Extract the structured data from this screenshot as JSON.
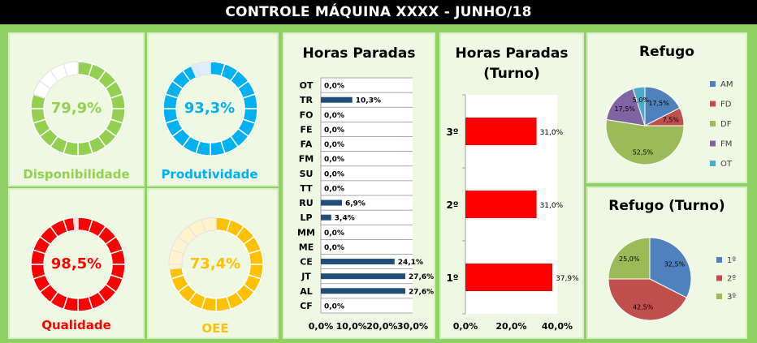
{
  "header": {
    "title": "CONTROLE MÁQUINA XXXX - JUNHO/18"
  },
  "kpis": [
    {
      "id": "disponibilidade",
      "label": "Disponibilidade",
      "value": 79.9,
      "value_text": "79,9%",
      "color": "#92d050",
      "light": "#ffffff",
      "label_color": "#92d050"
    },
    {
      "id": "produtividade",
      "label": "Produtividade",
      "value": 93.3,
      "value_text": "93,3%",
      "color": "#00b0f0",
      "light": "#dbeffa",
      "label_color": "#00b0f0"
    },
    {
      "id": "qualidade",
      "label": "Qualidade",
      "value": 98.5,
      "value_text": "98,5%",
      "color": "#ff0000",
      "light": "#fde0e0",
      "label_color": "#ff0000"
    },
    {
      "id": "oee",
      "label": "OEE",
      "value": 73.4,
      "value_text": "73,4%",
      "color": "#ffc000",
      "light": "#fff2cc",
      "label_color": "#ffc000"
    }
  ],
  "chart_data": [
    {
      "type": "bar",
      "orientation": "horizontal",
      "title": "Horas Paradas",
      "categories": [
        "OT",
        "TR",
        "FO",
        "FE",
        "FA",
        "FM",
        "SU",
        "TT",
        "RU",
        "LP",
        "MM",
        "ME",
        "CE",
        "JT",
        "AL",
        "CF"
      ],
      "values": [
        0.0,
        10.3,
        0.0,
        0.0,
        0.0,
        0.0,
        0.0,
        0.0,
        6.9,
        3.4,
        0.0,
        0.0,
        24.1,
        27.6,
        27.6,
        0.0
      ],
      "data_labels": [
        "0,0%",
        "10,3%",
        "0,0%",
        "0,0%",
        "0,0%",
        "0,0%",
        "0,0%",
        "0,0%",
        "6,9%",
        "3,4%",
        "0,0%",
        "0,0%",
        "24,1%",
        "27,6%",
        "27,6%",
        "0,0%"
      ],
      "xlim": [
        0,
        30
      ],
      "xticks": [
        "0,0%",
        "10,0%",
        "20,0%",
        "30,0%"
      ],
      "color": "#1f4e79",
      "grid": "horizontal"
    },
    {
      "type": "bar",
      "orientation": "horizontal",
      "title": "Horas Paradas (Turno)",
      "categories": [
        "3º",
        "2º",
        "1º"
      ],
      "values": [
        31.0,
        31.0,
        37.9
      ],
      "data_labels": [
        "31,0%",
        "31,0%",
        "37,9%"
      ],
      "xlim": [
        0,
        40
      ],
      "xticks": [
        "0,0%",
        "20,0%",
        "40,0%"
      ],
      "color": "#ff0000"
    },
    {
      "type": "pie",
      "title": "Refugo",
      "labels": [
        "AM",
        "FD",
        "DF",
        "FM",
        "OT"
      ],
      "values": [
        17.5,
        7.5,
        52.5,
        17.5,
        5.0
      ],
      "data_labels": [
        "17,5%",
        "7,5%",
        "52,5%",
        "17,5%",
        "5,0%"
      ],
      "colors": [
        "#4f81bd",
        "#c0504d",
        "#9bbb59",
        "#8064a2",
        "#4bacc6"
      ],
      "legend": "right"
    },
    {
      "type": "pie",
      "title": "Refugo (Turno)",
      "labels": [
        "1º",
        "2º",
        "3º"
      ],
      "values": [
        32.5,
        42.5,
        25.0
      ],
      "data_labels": [
        "32,5%",
        "42,5%",
        "25,0%"
      ],
      "colors": [
        "#4f81bd",
        "#c0504d",
        "#9bbb59"
      ],
      "legend": "right"
    }
  ]
}
